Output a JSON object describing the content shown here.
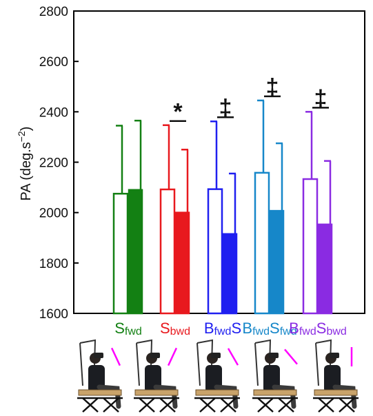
{
  "chart_data": {
    "type": "bar",
    "ylabel": "PA (deg.s",
    "ylabel_superscript": "−2",
    "ylabel_close": ")",
    "ylim": [
      1600,
      2800
    ],
    "yticks": [
      1600,
      1800,
      2000,
      2200,
      2400,
      2600,
      2800
    ],
    "grid": false,
    "conditions": [
      {
        "color": "#138013",
        "label_parts": [
          {
            "text": "S",
            "sub": false
          },
          {
            "text": "fwd",
            "sub": true
          }
        ],
        "series": [
          {
            "fill": "open",
            "value": 2075,
            "error_top": 2345
          },
          {
            "fill": "solid",
            "value": 2090,
            "error_top": 2365
          }
        ],
        "significance": ""
      },
      {
        "color": "#e8191e",
        "label_parts": [
          {
            "text": "S",
            "sub": false
          },
          {
            "text": "bwd",
            "sub": true
          }
        ],
        "series": [
          {
            "fill": "open",
            "value": 2092,
            "error_top": 2347
          },
          {
            "fill": "solid",
            "value": 2000,
            "error_top": 2250
          }
        ],
        "significance": "*"
      },
      {
        "color": "#1f1ff0",
        "label_parts": [
          {
            "text": "B",
            "sub": false
          },
          {
            "text": "fwd",
            "sub": true
          },
          {
            "text": "S",
            "sub": false
          }
        ],
        "series": [
          {
            "fill": "open",
            "value": 2093,
            "error_top": 2362
          },
          {
            "fill": "solid",
            "value": 1915,
            "error_top": 2155
          }
        ],
        "significance": "‡"
      },
      {
        "color": "#1687c9",
        "label_parts": [
          {
            "text": "B",
            "sub": false
          },
          {
            "text": "fwd",
            "sub": true
          },
          {
            "text": "S",
            "sub": false
          },
          {
            "text": "fwd",
            "sub": true
          }
        ],
        "series": [
          {
            "fill": "open",
            "value": 2158,
            "error_top": 2445
          },
          {
            "fill": "solid",
            "value": 2007,
            "error_top": 2275
          }
        ],
        "significance": "‡"
      },
      {
        "color": "#8a2be2",
        "label_parts": [
          {
            "text": "B",
            "sub": false
          },
          {
            "text": "fwd",
            "sub": true
          },
          {
            "text": "S",
            "sub": false
          },
          {
            "text": "bwd",
            "sub": true
          }
        ],
        "series": [
          {
            "fill": "open",
            "value": 2133,
            "error_top": 2400
          },
          {
            "fill": "solid",
            "value": 1953,
            "error_top": 2205
          }
        ],
        "significance": "‡"
      }
    ]
  },
  "figures": {
    "accent_color": "#ff00ff",
    "illustrations": [
      {
        "icon": "seated-subject-icon",
        "line_angle_deg": 25
      },
      {
        "icon": "seated-subject-icon",
        "line_angle_deg": -25
      },
      {
        "icon": "seated-subject-icon",
        "line_angle_deg": 30
      },
      {
        "icon": "seated-subject-icon",
        "line_angle_deg": 40
      },
      {
        "icon": "seated-subject-icon",
        "line_angle_deg": 0
      }
    ]
  }
}
